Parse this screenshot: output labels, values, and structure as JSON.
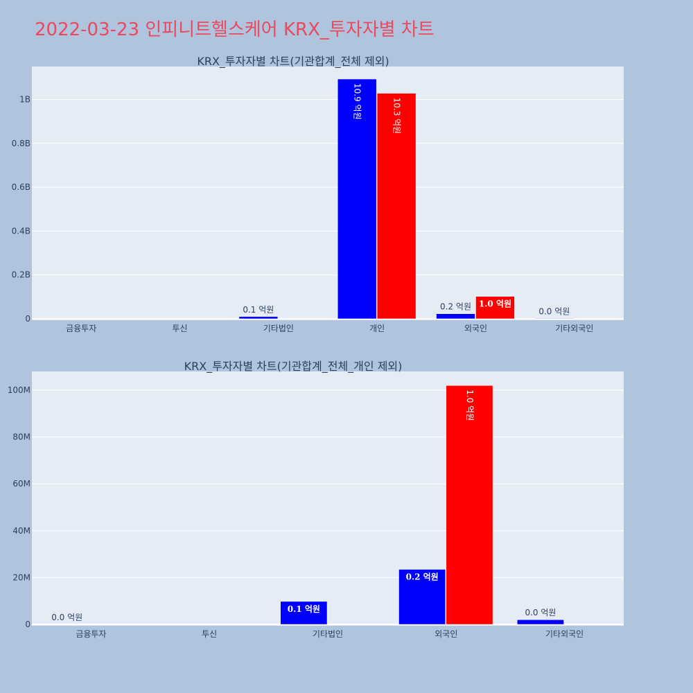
{
  "page_title": "2022-03-23 인피니트헬스케어 KRX_투자자별 차트",
  "colors": {
    "background": "#b0c4de",
    "plot_bg": "#e5ecf6",
    "title": "#e84a5f",
    "buy": "#0000ff",
    "sell": "#ff0000",
    "text": "#2a3f5f"
  },
  "chart_data": [
    {
      "type": "bar",
      "title": "KRX_투자자별 차트(기관합계_전체 제외)",
      "categories": [
        "금융투자",
        "투신",
        "기타법인",
        "개인",
        "외국인",
        "기타외국인"
      ],
      "series": [
        {
          "color": "#0000ff",
          "values": [
            0,
            0,
            10000000,
            1093000000,
            23000000,
            2000000
          ],
          "labels": [
            "",
            "",
            "0.1 억원",
            "10.9 억원",
            "0.2 억원",
            "0.0 억원"
          ]
        },
        {
          "color": "#ff0000",
          "values": [
            0,
            0,
            0,
            1028000000,
            102000000,
            0
          ],
          "labels": [
            "",
            "",
            "",
            "10.3 억원",
            "1.0 억원",
            ""
          ]
        }
      ],
      "ylim": [
        0,
        1150000000
      ],
      "yticks": [
        0,
        200000000,
        400000000,
        600000000,
        800000000,
        1000000000
      ],
      "ytick_labels": [
        "0",
        "0.2B",
        "0.4B",
        "0.6B",
        "0.8B",
        "1B"
      ],
      "grid": true
    },
    {
      "type": "bar",
      "title": "KRX_투자자별 차트(기관합계_전체_개인 제외)",
      "categories": [
        "금융투자",
        "투신",
        "기타법인",
        "외국인",
        "기타외국인"
      ],
      "series": [
        {
          "color": "#0000ff",
          "values": [
            0,
            0,
            9800000,
            23500000,
            2000000
          ],
          "labels": [
            "0.0 억원",
            "",
            "0.1 억원",
            "0.2 억원",
            "0.0 억원"
          ]
        },
        {
          "color": "#ff0000",
          "values": [
            0,
            0,
            0,
            102000000,
            0
          ],
          "labels": [
            "",
            "",
            "",
            "1.0 억원",
            ""
          ]
        }
      ],
      "ylim": [
        0,
        108000000
      ],
      "yticks": [
        0,
        20000000,
        40000000,
        60000000,
        80000000,
        100000000
      ],
      "ytick_labels": [
        "0",
        "20M",
        "40M",
        "60M",
        "80M",
        "100M"
      ],
      "grid": true
    }
  ]
}
